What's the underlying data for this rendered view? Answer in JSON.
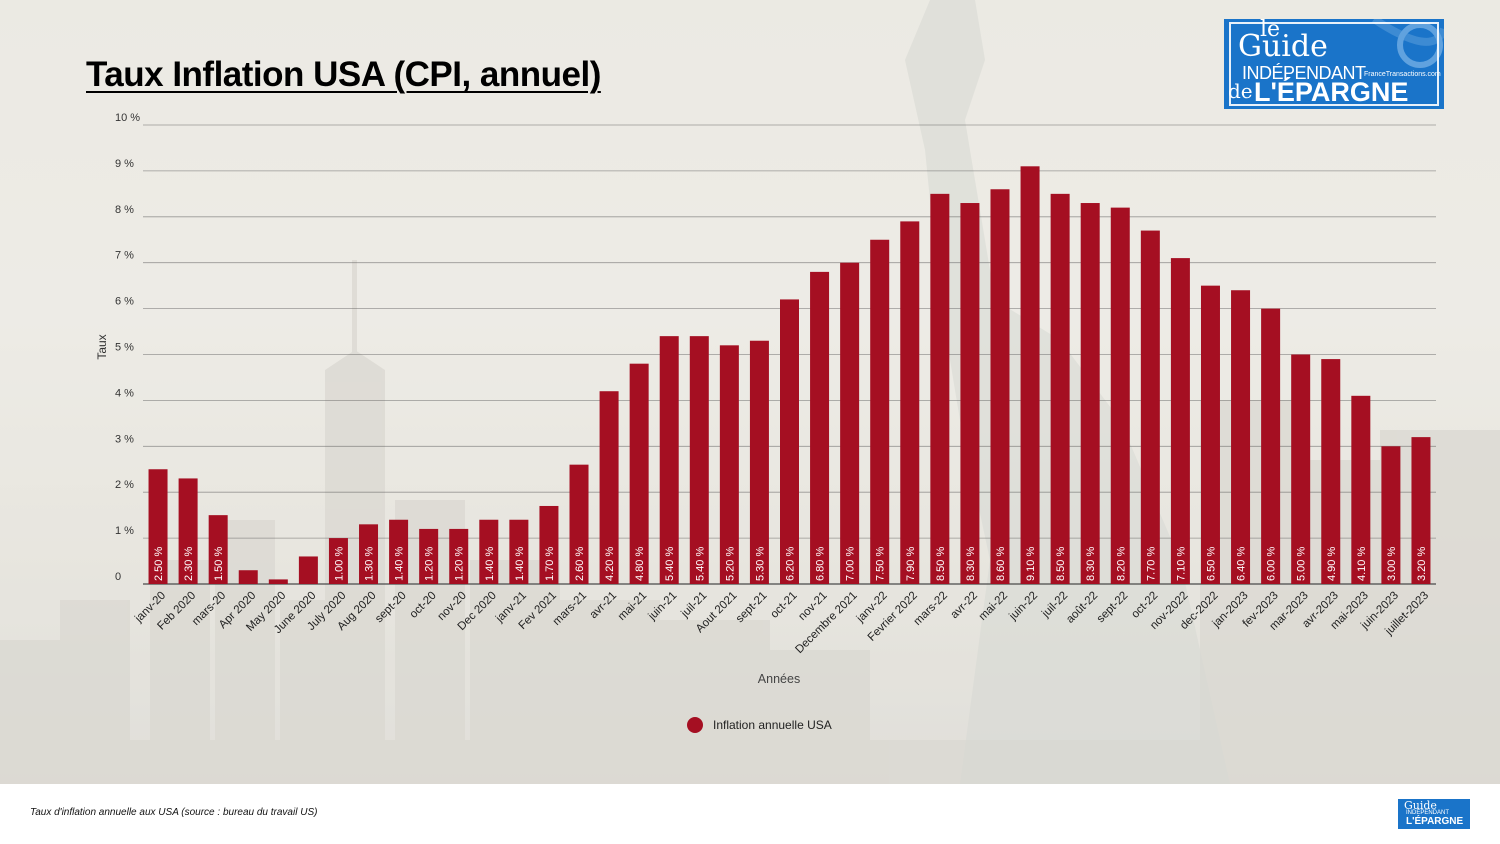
{
  "title": "Taux Inflation USA (CPI, annuel)",
  "caption": "Taux d'inflation annuelle aux USA (source : bureau du travail US)",
  "logo": {
    "line1": "le",
    "line2": "Guide",
    "line3": "INDÉPENDANT",
    "line4": "de",
    "line5": "L'ÉPARGNE",
    "site": "FranceTransactions.com"
  },
  "colors": {
    "bar": "#a50f22",
    "grid": "#555555",
    "logo_bg": "#1a74c9"
  },
  "chart_data": {
    "type": "bar",
    "xlabel": "Années",
    "ylabel": "Taux",
    "ylim": [
      0,
      10
    ],
    "yticks": [
      {
        "value": 0,
        "label": "0"
      },
      {
        "value": 1,
        "label": "1 %"
      },
      {
        "value": 2,
        "label": "2 %"
      },
      {
        "value": 3,
        "label": "3 %"
      },
      {
        "value": 4,
        "label": "4 %"
      },
      {
        "value": 5,
        "label": "5 %"
      },
      {
        "value": 6,
        "label": "6 %"
      },
      {
        "value": 7,
        "label": "7 %"
      },
      {
        "value": 8,
        "label": "8 %"
      },
      {
        "value": 9,
        "label": "9 %"
      },
      {
        "value": 10,
        "label": "10 %"
      }
    ],
    "grid": true,
    "legend_position": "bottom",
    "categories": [
      "janv-20",
      "Feb 2020",
      "mars-20",
      "Apr 2020",
      "May 2020",
      "June 2020",
      "July 2020",
      "Aug 2020",
      "sept-20",
      "oct-20",
      "nov-20",
      "Dec 2020",
      "janv-21",
      "Fev 2021",
      "mars-21",
      "avr-21",
      "mai-21",
      "juin-21",
      "juil-21",
      "Aout 2021",
      "sept-21",
      "oct-21",
      "nov-21",
      "Decembre 2021",
      "janv-22",
      "Fevrier 2022",
      "mars-22",
      "avr-22",
      "mai-22",
      "juin-22",
      "juil-22",
      "août-22",
      "sept-22",
      "oct-22",
      "nov-2022",
      "dec-2022",
      "jan-2023",
      "fev-2023",
      "mar-2023",
      "avr-2023",
      "mai-2023",
      "juin-2023",
      "juillet-2023"
    ],
    "series": [
      {
        "name": "Inflation annuelle USA",
        "color": "#a50f22",
        "values": [
          2.5,
          2.3,
          1.5,
          0.3,
          0.1,
          0.6,
          1.0,
          1.3,
          1.4,
          1.2,
          1.2,
          1.4,
          1.4,
          1.7,
          2.6,
          4.2,
          4.8,
          5.4,
          5.4,
          5.2,
          5.3,
          6.2,
          6.8,
          7.0,
          7.5,
          7.9,
          8.5,
          8.3,
          8.6,
          9.1,
          8.5,
          8.3,
          8.2,
          7.7,
          7.1,
          6.5,
          6.4,
          6.0,
          5.0,
          4.9,
          4.1,
          3.0,
          3.2
        ],
        "data_labels": [
          "2.50 %",
          "2.30 %",
          "1.50 %",
          "",
          "",
          "",
          "1.00 %",
          "1.30 %",
          "1.40 %",
          "1.20 %",
          "1.20 %",
          "1.40 %",
          "1.40 %",
          "1.70 %",
          "2.60 %",
          "4.20 %",
          "4.80 %",
          "5.40 %",
          "5.40 %",
          "5.20 %",
          "5.30 %",
          "6.20 %",
          "6.80 %",
          "7.00 %",
          "7.50 %",
          "7.90 %",
          "8.50 %",
          "8.30 %",
          "8.60 %",
          "9.10 %",
          "8.50 %",
          "8.30 %",
          "8.20 %",
          "7.70 %",
          "7.10 %",
          "6.50 %",
          "6.40 %",
          "6.00 %",
          "5.00 %",
          "4.90 %",
          "4.10 %",
          "3.00 %",
          "3.20 %"
        ]
      }
    ]
  }
}
